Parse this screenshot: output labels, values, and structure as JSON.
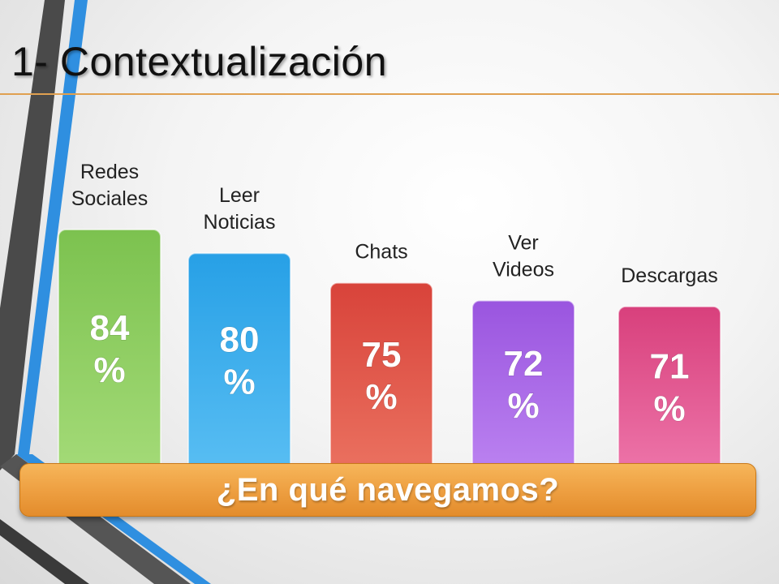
{
  "slide": {
    "title": "1- Contextualización",
    "banner": "¿En qué navegamos?"
  },
  "chart_data": {
    "type": "bar",
    "categories": [
      "Redes Sociales",
      "Leer Noticias",
      "Chats",
      "Ver Videos",
      "Descargas"
    ],
    "category_lines": [
      [
        "Redes",
        "Sociales"
      ],
      [
        "Leer",
        "Noticias"
      ],
      [
        "Chats"
      ],
      [
        "Ver",
        "Videos"
      ],
      [
        "Descargas"
      ]
    ],
    "values": [
      84,
      80,
      75,
      72,
      71
    ],
    "value_labels": [
      [
        "84",
        "%"
      ],
      [
        "80",
        "%"
      ],
      [
        "75",
        "%"
      ],
      [
        "72",
        "%"
      ],
      [
        "71",
        "%"
      ]
    ],
    "unit": "%",
    "colors": [
      [
        "#7cc24f",
        "#a6dc7a"
      ],
      [
        "#27a0e6",
        "#5cc0f4"
      ],
      [
        "#d8433a",
        "#ec7563"
      ],
      [
        "#9a55df",
        "#be86f2"
      ],
      [
        "#d8407c",
        "#ef79ad"
      ]
    ],
    "title": "",
    "xlabel": "",
    "ylabel": "",
    "grid": false,
    "legend": "none"
  }
}
